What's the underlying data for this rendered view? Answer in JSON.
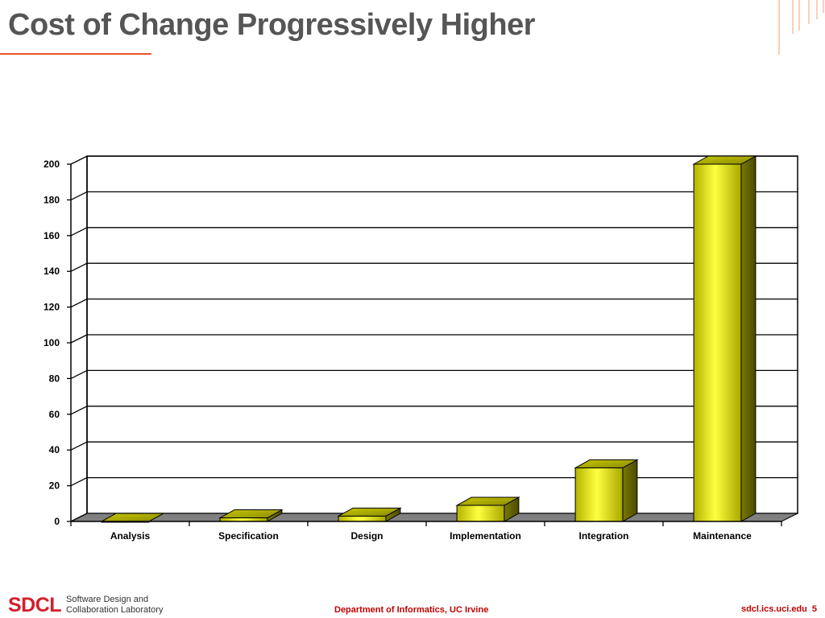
{
  "slide": {
    "title": "Cost of Change Progressively Higher"
  },
  "colors": {
    "accent": "#e8552a",
    "bar": "#ffff00",
    "floor": "#808080"
  },
  "chart_data": {
    "type": "bar",
    "categories": [
      "Analysis",
      "Specification",
      "Design",
      "Implementation",
      "Integration",
      "Maintenance"
    ],
    "values": [
      0,
      2,
      3,
      9,
      30,
      200
    ],
    "ylim": [
      0,
      200
    ],
    "yticks": [
      0,
      20,
      40,
      60,
      80,
      100,
      120,
      140,
      160,
      180,
      200
    ],
    "grid": true,
    "style": "3d"
  },
  "footer": {
    "logo": "SDCL",
    "lab_line1": "Software Design and",
    "lab_line2": "Collaboration Laboratory",
    "center": "Department of Informatics, UC Irvine",
    "site": "sdcl.ics.uci.edu",
    "page": "5"
  }
}
